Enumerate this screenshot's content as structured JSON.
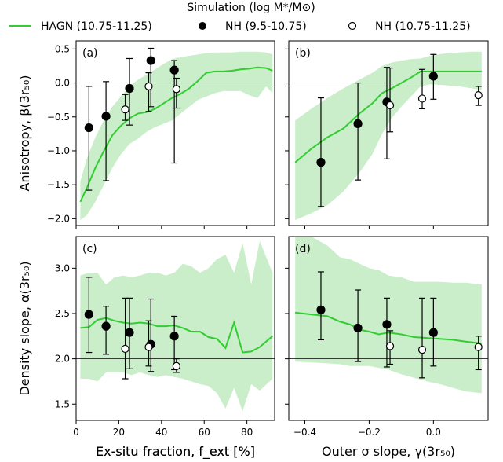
{
  "legend": {
    "title": "Simulation (log M*/M⊙)",
    "entries": [
      {
        "label": "HAGN (10.75-11.25)",
        "marker": "line",
        "color": "#33cc33"
      },
      {
        "label": "NH (9.5-10.75)",
        "marker": "filled-circle",
        "color": "#000000"
      },
      {
        "label": "NH (10.75-11.25)",
        "marker": "open-circle",
        "color": "#000000"
      }
    ]
  },
  "colors": {
    "line": "#33cc33",
    "band": "#c9eec9",
    "points": "#000000"
  },
  "chart_data": [
    {
      "panel_label": "(a)",
      "type": "line",
      "xlabel": "Ex-situ fraction, f_ext [%]",
      "ylabel": "Anisotropy, β(3r₅₀)",
      "xlim": [
        0,
        93
      ],
      "ylim": [
        -2.1,
        0.62
      ],
      "xticks": [
        0,
        20,
        40,
        60,
        80
      ],
      "yticks": [
        -2.0,
        -1.5,
        -1.0,
        -0.5,
        0.0,
        0.5
      ],
      "ytick_labels": [
        "−2.0",
        "−1.5",
        "−1.0",
        "−0.5",
        "0.0",
        "0.5"
      ],
      "show_xticklabels": true,
      "show_yticklabels": true,
      "hline": 0.0,
      "hagn": {
        "x": [
          2,
          5,
          9,
          13,
          17,
          21,
          25,
          29,
          33,
          37,
          41,
          45,
          49,
          53,
          57,
          61,
          65,
          69,
          73,
          77,
          81,
          85,
          89,
          92
        ],
        "y": [
          -1.75,
          -1.55,
          -1.25,
          -1.0,
          -0.77,
          -0.63,
          -0.52,
          -0.45,
          -0.43,
          -0.38,
          -0.3,
          -0.22,
          -0.16,
          -0.08,
          0.03,
          0.15,
          0.17,
          0.17,
          0.18,
          0.2,
          0.21,
          0.23,
          0.22,
          0.18
        ],
        "lo": [
          -2.02,
          -1.95,
          -1.75,
          -1.5,
          -1.25,
          -1.05,
          -0.9,
          -0.82,
          -0.72,
          -0.65,
          -0.6,
          -0.55,
          -0.45,
          -0.35,
          -0.25,
          -0.2,
          -0.15,
          -0.12,
          -0.12,
          -0.12,
          -0.18,
          -0.22,
          -0.05,
          -0.15
        ],
        "hi": [
          -1.45,
          -1.12,
          -0.8,
          -0.55,
          -0.35,
          -0.2,
          -0.05,
          0.05,
          0.12,
          0.2,
          0.28,
          0.35,
          0.38,
          0.4,
          0.42,
          0.44,
          0.45,
          0.45,
          0.45,
          0.46,
          0.46,
          0.46,
          0.45,
          0.42
        ]
      },
      "nh_low": [
        {
          "x": 6,
          "y": -0.66,
          "lo": -1.58,
          "hi": -0.05
        },
        {
          "x": 14,
          "y": -0.49,
          "lo": -1.44,
          "hi": 0.02
        },
        {
          "x": 25,
          "y": -0.08,
          "lo": -0.62,
          "hi": 0.36
        },
        {
          "x": 35,
          "y": 0.33,
          "lo": -0.35,
          "hi": 0.51
        },
        {
          "x": 46,
          "y": 0.19,
          "lo": -1.18,
          "hi": 0.33
        }
      ],
      "nh_high": [
        {
          "x": 23,
          "y": -0.39,
          "lo": -0.55,
          "hi": -0.17
        },
        {
          "x": 34,
          "y": -0.05,
          "lo": -0.42,
          "hi": 0.15
        },
        {
          "x": 47,
          "y": -0.09,
          "lo": -0.37,
          "hi": 0.07
        }
      ]
    },
    {
      "panel_label": "(b)",
      "type": "line",
      "xlabel": "",
      "ylabel": "",
      "xlim": [
        -0.45,
        0.17
      ],
      "ylim": [
        -2.1,
        0.62
      ],
      "xticks": [
        -0.4,
        -0.2,
        0.0
      ],
      "yticks": [
        -2.0,
        -1.5,
        -1.0,
        -0.5,
        0.0,
        0.5
      ],
      "show_xticklabels": false,
      "show_yticklabels": false,
      "hline": 0.0,
      "hagn": {
        "x": [
          -0.43,
          -0.38,
          -0.33,
          -0.28,
          -0.23,
          -0.19,
          -0.16,
          -0.13,
          -0.1,
          -0.07,
          -0.04,
          -0.01,
          0.03,
          0.08,
          0.12,
          0.15
        ],
        "y": [
          -1.17,
          -0.97,
          -0.8,
          -0.67,
          -0.45,
          -0.3,
          -0.15,
          -0.08,
          0.0,
          0.08,
          0.17,
          0.17,
          0.17,
          0.17,
          0.17,
          0.17
        ],
        "lo": [
          -2.02,
          -1.92,
          -1.8,
          -1.6,
          -1.32,
          -1.05,
          -0.75,
          -0.52,
          -0.35,
          -0.2,
          -0.05,
          -0.02,
          -0.03,
          -0.05,
          -0.08,
          -0.1
        ],
        "hi": [
          -0.55,
          -0.38,
          -0.22,
          -0.08,
          0.05,
          0.15,
          0.25,
          0.3,
          0.33,
          0.35,
          0.36,
          0.4,
          0.43,
          0.45,
          0.46,
          0.46
        ]
      },
      "nh_low": [
        {
          "x": -0.35,
          "y": -1.17,
          "lo": -1.82,
          "hi": -0.22
        },
        {
          "x": -0.235,
          "y": -0.6,
          "lo": -1.43,
          "hi": 0.0
        },
        {
          "x": -0.145,
          "y": -0.28,
          "lo": -1.12,
          "hi": 0.23
        },
        {
          "x": 0.0,
          "y": 0.1,
          "lo": -0.24,
          "hi": 0.42
        }
      ],
      "nh_high": [
        {
          "x": -0.135,
          "y": -0.33,
          "lo": -0.72,
          "hi": 0.22
        },
        {
          "x": -0.035,
          "y": -0.23,
          "lo": -0.38,
          "hi": 0.2
        },
        {
          "x": 0.14,
          "y": -0.18,
          "lo": -0.33,
          "hi": -0.05
        }
      ]
    },
    {
      "panel_label": "(c)",
      "type": "line",
      "xlabel": "Ex-situ fraction, f_ext [%]",
      "ylabel": "Density slope, α(3r₅₀)",
      "xlim": [
        0,
        93
      ],
      "ylim": [
        1.32,
        3.35
      ],
      "xticks": [
        0,
        20,
        40,
        60,
        80
      ],
      "yticks": [
        1.5,
        2.0,
        2.5,
        3.0
      ],
      "ytick_labels": [
        "1.5",
        "2.0",
        "2.5",
        "3.0"
      ],
      "xtick_labels": [
        "0",
        "20",
        "40",
        "60",
        "80"
      ],
      "show_xticklabels": true,
      "show_yticklabels": true,
      "hline": 2.0,
      "hagn": {
        "x": [
          2,
          6,
          10,
          14,
          18,
          22,
          26,
          30,
          34,
          38,
          42,
          46,
          50,
          54,
          58,
          62,
          66,
          70,
          74,
          78,
          82,
          86,
          92
        ],
        "y": [
          2.34,
          2.35,
          2.43,
          2.45,
          2.42,
          2.4,
          2.39,
          2.4,
          2.39,
          2.36,
          2.36,
          2.37,
          2.34,
          2.3,
          2.3,
          2.24,
          2.22,
          2.12,
          2.4,
          2.07,
          2.08,
          2.13,
          2.25
        ],
        "lo": [
          1.78,
          1.78,
          1.75,
          1.85,
          1.85,
          1.85,
          1.82,
          1.85,
          1.82,
          1.8,
          1.82,
          1.8,
          1.78,
          1.75,
          1.72,
          1.7,
          1.62,
          1.45,
          1.68,
          1.42,
          1.72,
          1.65,
          1.78
        ],
        "hi": [
          2.92,
          2.95,
          2.95,
          2.82,
          2.9,
          2.92,
          2.9,
          2.92,
          2.95,
          2.95,
          2.92,
          2.95,
          3.05,
          3.02,
          2.95,
          3.0,
          3.1,
          3.15,
          2.95,
          3.28,
          2.82,
          3.3,
          2.95
        ]
      },
      "nh_low": [
        {
          "x": 6,
          "y": 2.49,
          "lo": 2.07,
          "hi": 2.9
        },
        {
          "x": 14,
          "y": 2.36,
          "lo": 2.05,
          "hi": 2.58
        },
        {
          "x": 25,
          "y": 2.29,
          "lo": 1.89,
          "hi": 2.67
        },
        {
          "x": 35,
          "y": 2.16,
          "lo": 1.86,
          "hi": 2.66
        },
        {
          "x": 46,
          "y": 2.25,
          "lo": 1.88,
          "hi": 2.47
        }
      ],
      "nh_high": [
        {
          "x": 23,
          "y": 2.11,
          "lo": 1.78,
          "hi": 2.67
        },
        {
          "x": 34,
          "y": 2.13,
          "lo": 1.92,
          "hi": 2.42
        },
        {
          "x": 47,
          "y": 1.92,
          "lo": 1.85,
          "hi": 2.0
        }
      ]
    },
    {
      "panel_label": "(d)",
      "type": "line",
      "xlabel": "Outer σ slope, γ(3r₅₀)",
      "ylabel": "",
      "xlim": [
        -0.45,
        0.17
      ],
      "ylim": [
        1.32,
        3.35
      ],
      "xticks": [
        -0.4,
        -0.2,
        0.0
      ],
      "yticks": [
        1.5,
        2.0,
        2.5,
        3.0
      ],
      "xtick_labels": [
        "−0.4",
        "−0.2",
        "0.0"
      ],
      "show_xticklabels": true,
      "show_yticklabels": false,
      "hline": 2.0,
      "hagn": {
        "x": [
          -0.43,
          -0.38,
          -0.33,
          -0.29,
          -0.26,
          -0.23,
          -0.2,
          -0.17,
          -0.14,
          -0.1,
          -0.06,
          -0.02,
          0.02,
          0.06,
          0.1,
          0.15
        ],
        "y": [
          2.51,
          2.49,
          2.47,
          2.41,
          2.38,
          2.32,
          2.3,
          2.27,
          2.29,
          2.27,
          2.24,
          2.23,
          2.22,
          2.21,
          2.19,
          2.17
        ],
        "lo": [
          1.97,
          1.96,
          1.95,
          1.94,
          1.92,
          1.92,
          1.92,
          1.9,
          1.88,
          1.83,
          1.79,
          1.75,
          1.72,
          1.68,
          1.64,
          1.62
        ],
        "hi": [
          3.35,
          3.35,
          3.25,
          3.12,
          3.1,
          3.05,
          3.0,
          2.98,
          2.92,
          2.9,
          2.85,
          2.85,
          2.85,
          2.84,
          2.84,
          2.82
        ]
      },
      "nh_low": [
        {
          "x": -0.35,
          "y": 2.54,
          "lo": 2.21,
          "hi": 2.96
        },
        {
          "x": -0.235,
          "y": 2.34,
          "lo": 1.97,
          "hi": 2.76
        },
        {
          "x": -0.145,
          "y": 2.38,
          "lo": 1.91,
          "hi": 2.67
        },
        {
          "x": 0.0,
          "y": 2.29,
          "lo": 1.92,
          "hi": 2.67
        }
      ],
      "nh_high": [
        {
          "x": -0.135,
          "y": 2.14,
          "lo": 1.94,
          "hi": 2.31
        },
        {
          "x": -0.035,
          "y": 2.1,
          "lo": 1.79,
          "hi": 2.67
        },
        {
          "x": 0.14,
          "y": 2.13,
          "lo": 1.88,
          "hi": 2.25
        }
      ]
    }
  ]
}
